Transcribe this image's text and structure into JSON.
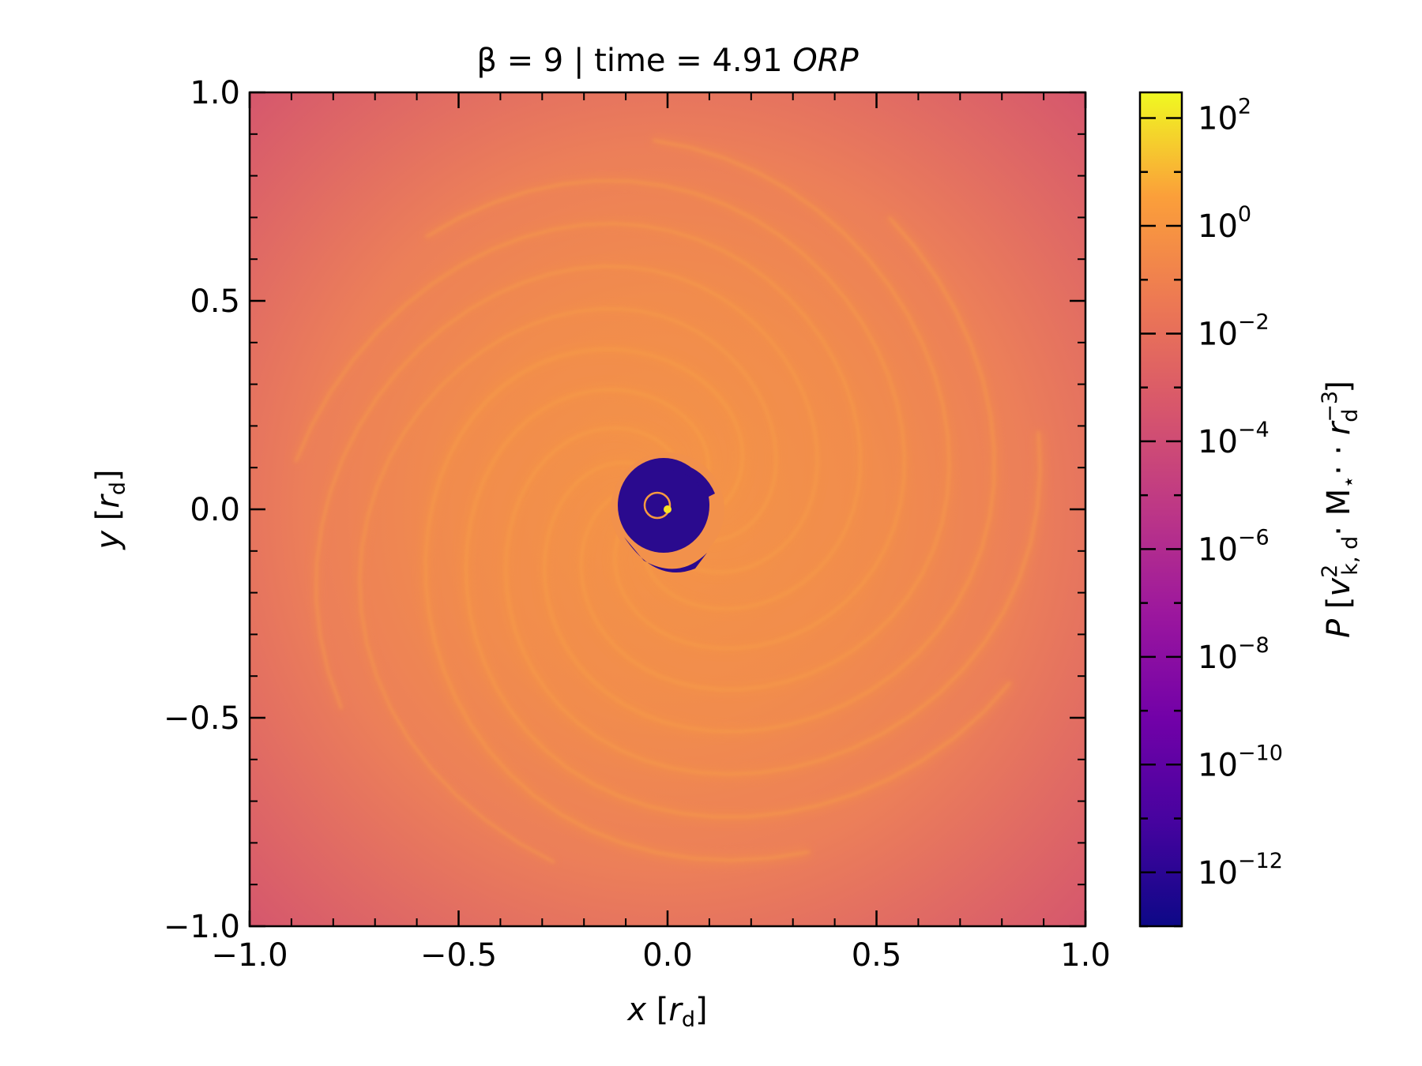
{
  "chart_data": {
    "type": "heatmap",
    "title": {
      "prefix": "β = 9 | time = 4.91 ",
      "italic": "ORP"
    },
    "xlabel": {
      "var": "x",
      "open": " [",
      "unit": "r",
      "unit_sub": "d",
      "close": "]"
    },
    "ylabel": {
      "var": "y",
      "open": " [",
      "unit": "r",
      "unit_sub": "d",
      "close": "]"
    },
    "xlim": [
      -1.0,
      1.0
    ],
    "ylim": [
      -1.0,
      1.0
    ],
    "x_ticks": [
      -1.0,
      -0.5,
      0.0,
      0.5,
      1.0
    ],
    "x_tick_labels": [
      "−1.0",
      "−0.5",
      "0.0",
      "0.5",
      "1.0"
    ],
    "y_ticks": [
      -1.0,
      -0.5,
      0.0,
      0.5,
      1.0
    ],
    "y_tick_labels": [
      "−1.0",
      "−0.5",
      "0.0",
      "0.5",
      "1.0"
    ],
    "colormap": "plasma",
    "colorbar": {
      "scale": "log",
      "range": [
        1e-13,
        300
      ],
      "ticks": [
        100,
        1,
        0.01,
        0.0001,
        1e-06,
        1e-08,
        1e-10,
        1e-12
      ],
      "tick_labels": [
        {
          "base": "10",
          "exp": "2"
        },
        {
          "base": "10",
          "exp": "0"
        },
        {
          "base": "10",
          "exp": "−2"
        },
        {
          "base": "10",
          "exp": "−4"
        },
        {
          "base": "10",
          "exp": "−6"
        },
        {
          "base": "10",
          "exp": "−8"
        },
        {
          "base": "10",
          "exp": "−10"
        },
        {
          "base": "10",
          "exp": "−12"
        }
      ],
      "label": {
        "var": "P",
        "open": " [",
        "v": "v",
        "v_sup": "2",
        "v_sub": "k, d",
        "mid": "· M",
        "star": "⋆",
        "mid2": "· · ",
        "r": "r",
        "r_sup": "−3",
        "r_sub": "d",
        "close": "]"
      }
    },
    "colors": {
      "outer": "#d6596c",
      "disk": "#ef8753",
      "filament": "#f89a3f",
      "cavity": "#2a0a8e",
      "star": "#f7e225"
    }
  }
}
